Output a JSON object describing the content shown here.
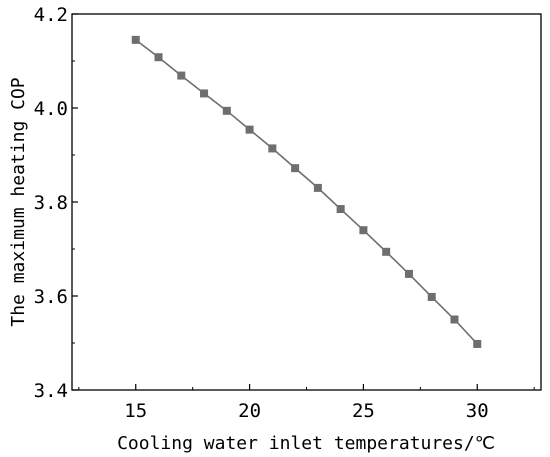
{
  "chart_data": {
    "type": "line",
    "title": "",
    "xlabel": "Cooling water inlet temperatures/℃",
    "ylabel": "The maximum heating COP",
    "xlim": [
      12.2,
      32.8
    ],
    "ylim": [
      3.4,
      4.2
    ],
    "x_ticks": [
      "15",
      "20",
      "25",
      "30"
    ],
    "y_ticks": [
      "3.4",
      "3.6",
      "3.8",
      "4.0",
      "4.2"
    ],
    "grid": false,
    "legend": "none",
    "series": [
      {
        "color": "#6e6e6e",
        "marker": "square",
        "x": [
          15,
          16,
          17,
          18,
          19,
          20,
          21,
          22,
          23,
          24,
          25,
          26,
          27,
          28,
          29,
          30
        ],
        "y": [
          4.145,
          4.108,
          4.069,
          4.031,
          3.994,
          3.954,
          3.914,
          3.872,
          3.83,
          3.785,
          3.74,
          3.694,
          3.647,
          3.598,
          3.55,
          3.498
        ]
      }
    ]
  }
}
